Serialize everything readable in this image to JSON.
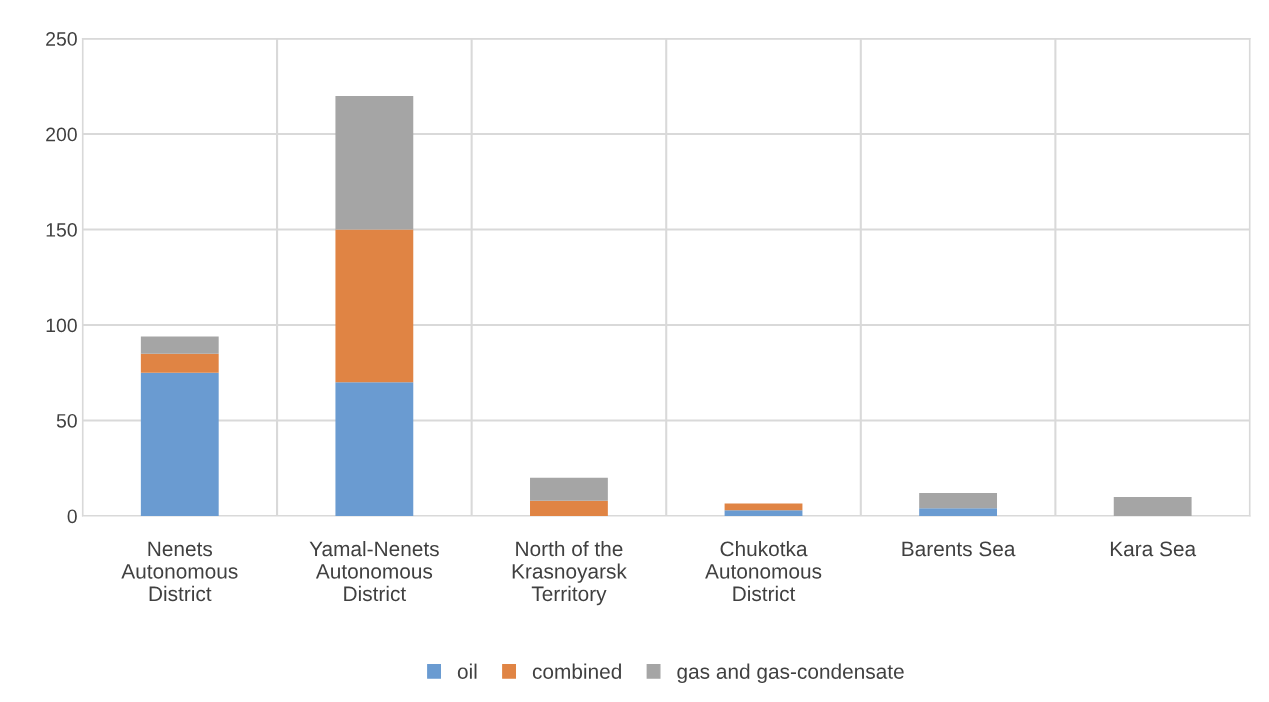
{
  "chart_data": {
    "type": "bar",
    "stacked": true,
    "categories": [
      "Nenets\nAutonomous\nDistrict",
      "Yamal-Nenets\nAutonomous\nDistrict",
      "North of the\nKrasnoyarsk\nTerritory",
      "Chukotka\nAutonomous\nDistrict",
      "Barents Sea",
      "Kara Sea"
    ],
    "series": [
      {
        "name": "oil",
        "color": "#6a9bd1",
        "values": [
          75,
          70,
          0,
          3,
          4,
          0
        ]
      },
      {
        "name": "combined",
        "color": "#e08444",
        "values": [
          10,
          80,
          8,
          3.5,
          0,
          0
        ]
      },
      {
        "name": "gas and gas-condensate",
        "color": "#a5a5a5",
        "values": [
          9,
          70,
          12,
          0,
          8,
          10
        ]
      }
    ],
    "ylim": [
      0,
      250
    ],
    "yticks": [
      0,
      50,
      100,
      150,
      200,
      250
    ],
    "grid": true,
    "legend": "bottom"
  }
}
